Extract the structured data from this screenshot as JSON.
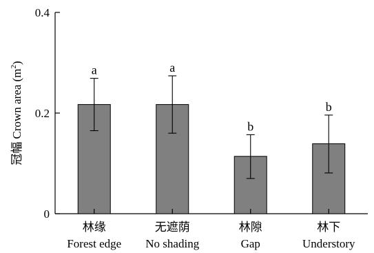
{
  "chart_data": {
    "type": "bar",
    "ylabel_cn": "冠幅",
    "ylabel_en": "Crown area (m",
    "ylabel_sup": "2",
    "ylabel_close": ")",
    "ylim": [
      0,
      0.4
    ],
    "yticks": [
      0,
      0.2,
      0.4
    ],
    "ytick_labels": [
      "0",
      "0.2",
      "0.4"
    ],
    "categories": [
      {
        "cn": "林缘",
        "en": "Forest edge"
      },
      {
        "cn": "无遮荫",
        "en": "No shading"
      },
      {
        "cn": "林隙",
        "en": "Gap"
      },
      {
        "cn": "林下",
        "en": "Understory"
      }
    ],
    "values": [
      0.217,
      0.217,
      0.114,
      0.139
    ],
    "error_upper": [
      0.269,
      0.274,
      0.157,
      0.196
    ],
    "error_lower": [
      0.165,
      0.16,
      0.07,
      0.081
    ],
    "significance": [
      "a",
      "a",
      "b",
      "b"
    ],
    "bar_color": "#808080"
  }
}
